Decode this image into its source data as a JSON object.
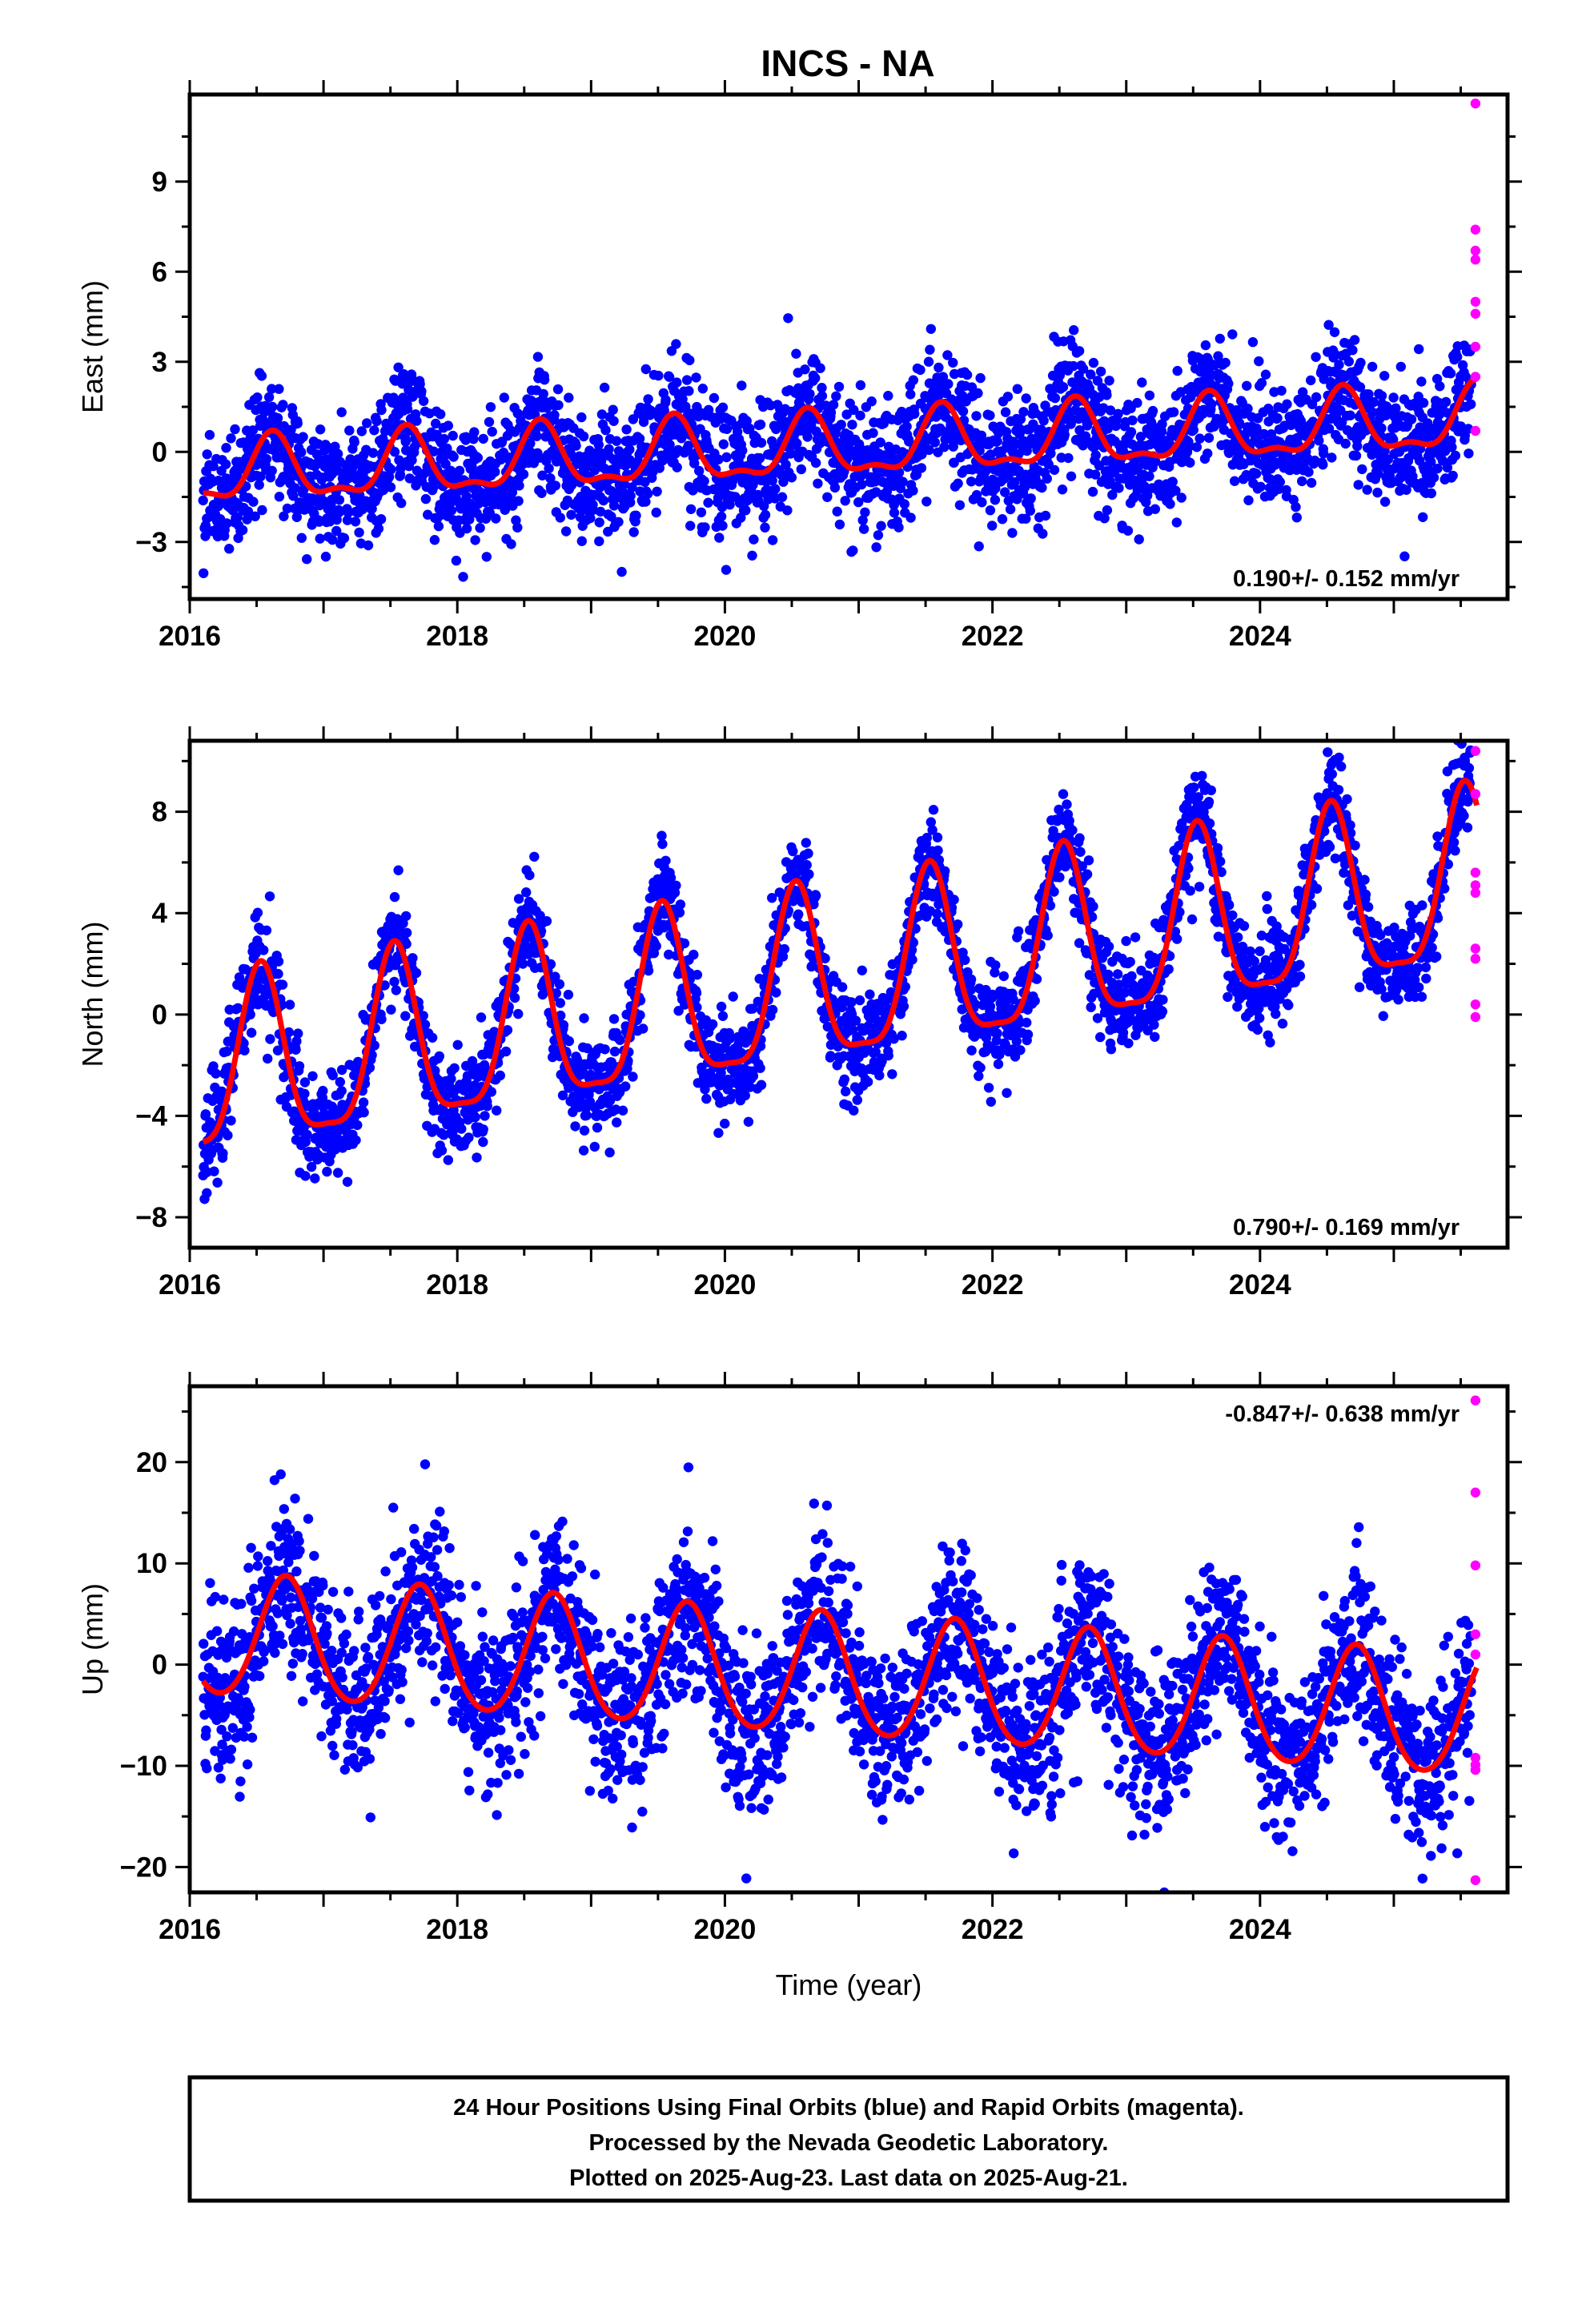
{
  "title": "INCS - NA",
  "colors": {
    "final_points": "#0000ff",
    "rapid_points": "#ff00ff",
    "model_curve": "#ff0000",
    "frame": "#000000"
  },
  "caption": {
    "line1": "24 Hour Positions Using Final Orbits (blue) and Rapid Orbits (magenta).",
    "line2": "Processed by the Nevada Geodetic Laboratory.",
    "line3": "Plotted on 2025-Aug-23. Last data on 2025-Aug-21."
  },
  "chart_data": [
    {
      "type": "scatter",
      "ylabel": "East (mm)",
      "xlabel": "",
      "xlim": [
        2016.0,
        2025.85
      ],
      "ylim": [
        -4.9,
        11.9
      ],
      "xticks": [
        2016,
        2018,
        2020,
        2022,
        2024
      ],
      "yticks": [
        -3,
        0,
        3,
        6,
        9
      ],
      "rate_label": "0.190+/- 0.152 mm/yr",
      "rate_label_position": "bottom-right",
      "model": {
        "start": 2016.1,
        "end": 2025.62,
        "rate": 0.19,
        "offset_at_2016": -0.8,
        "annual_amplitude": 1.0,
        "annual_peak_phase": 0.62,
        "semiannual_amplitude": 0.4,
        "scatter_sd": 1.05
      },
      "series": [
        {
          "name": "Final Orbits (blue)",
          "kind": "final",
          "start": 2016.1,
          "end": 2025.58
        },
        {
          "name": "Rapid Orbits (magenta)",
          "kind": "rapid",
          "x": [
            2025.61,
            2025.61,
            2025.61,
            2025.61,
            2025.61,
            2025.61,
            2025.61,
            2025.61,
            2025.61
          ],
          "y": [
            11.6,
            7.4,
            6.7,
            6.4,
            5.0,
            4.6,
            3.5,
            2.5,
            0.7
          ]
        }
      ]
    },
    {
      "type": "scatter",
      "ylabel": "North (mm)",
      "xlabel": "",
      "xlim": [
        2016.0,
        2025.85
      ],
      "ylim": [
        -9.2,
        10.8
      ],
      "xticks": [
        2016,
        2018,
        2020,
        2022,
        2024
      ],
      "yticks": [
        -8,
        -4,
        0,
        4,
        8
      ],
      "rate_label": "0.790+/- 0.169 mm/yr",
      "rate_label_position": "bottom-right",
      "model": {
        "start": 2016.1,
        "end": 2025.62,
        "rate": 0.79,
        "offset_at_2016": -2.6,
        "annual_amplitude": 3.4,
        "annual_peak_phase": 0.53,
        "semiannual_amplitude": 0.9,
        "scatter_sd": 1.0
      },
      "series": [
        {
          "name": "Final Orbits (blue)",
          "kind": "final",
          "start": 2016.1,
          "end": 2025.58
        },
        {
          "name": "Rapid Orbits (magenta)",
          "kind": "rapid",
          "x": [
            2025.61,
            2025.61,
            2025.61,
            2025.61,
            2025.61,
            2025.61,
            2025.61,
            2025.61,
            2025.61
          ],
          "y": [
            10.4,
            8.7,
            5.6,
            5.1,
            4.8,
            2.6,
            2.2,
            0.4,
            -0.1
          ]
        }
      ]
    },
    {
      "type": "scatter",
      "ylabel": "Up (mm)",
      "xlabel": "Time (year)",
      "xlim": [
        2016.0,
        2025.85
      ],
      "ylim": [
        -22.5,
        27.5
      ],
      "xticks": [
        2016,
        2018,
        2020,
        2022,
        2024
      ],
      "yticks": [
        -20,
        -10,
        0,
        10,
        20
      ],
      "rate_label": "-0.847+/- 0.638 mm/yr",
      "rate_label_position": "top-right",
      "model": {
        "start": 2016.1,
        "end": 2025.62,
        "rate": -0.847,
        "offset_at_2016": 2.8,
        "annual_amplitude": 6.0,
        "annual_peak_phase": 0.72,
        "semiannual_amplitude": 0.6,
        "scatter_sd": 4.2
      },
      "series": [
        {
          "name": "Final Orbits (blue)",
          "kind": "final",
          "start": 2016.1,
          "end": 2025.58
        },
        {
          "name": "Rapid Orbits (magenta)",
          "kind": "rapid",
          "x": [
            2025.61,
            2025.61,
            2025.61,
            2025.61,
            2025.61,
            2025.61,
            2025.61,
            2025.61,
            2025.61
          ],
          "y": [
            26.1,
            17.0,
            9.8,
            3.0,
            1.0,
            -9.2,
            -9.9,
            -10.4,
            -21.3
          ]
        }
      ]
    }
  ]
}
